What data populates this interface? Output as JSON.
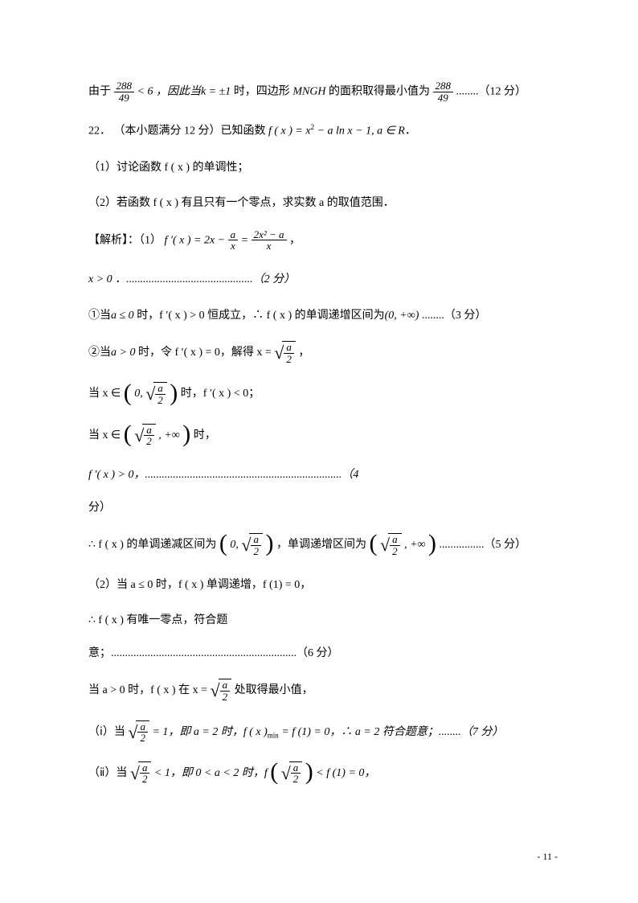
{
  "doc": {
    "background_color": "#ffffff",
    "text_color": "#000000",
    "base_fontsize": 14,
    "math_font": "Times New Roman",
    "body_font": "SimSun"
  },
  "lines": {
    "l1_pre": "由于",
    "l1_frac_num": "288",
    "l1_frac_den": "49",
    "l1_mid1": " < 6 ，因此当",
    "l1_k": "k = ±1",
    "l1_mid2": "时，四边形 ",
    "l1_mngh": "MNGH",
    "l1_mid3": " 的面积取得最小值为",
    "l1_frac2_num": "288",
    "l1_frac2_den": "49",
    "l1_dots": "........（12 分）",
    "l2_qnum": "22．",
    "l2_text": "（本小题满分 12 分）已知函数 ",
    "l2_fx": "f ( x ) = x",
    "l2_sq": "2",
    "l2_rest": " − a ln x − 1, a ∈ R",
    "l2_period": "．",
    "l3": "（1）讨论函数 f ( x ) 的单调性；",
    "l4": "（2）若函数 f ( x ) 有且只有一个零点，求实数 a 的取值范围．",
    "l5_pre": "【解析】：（1）",
    "l5_fpx": "f ′( x ) = 2x − ",
    "l5_frac1_num": "a",
    "l5_frac1_den": "x",
    "l5_eq": " = ",
    "l5_frac2_num": "2x² − a",
    "l5_frac2_den": "x",
    "l5_comma": "，",
    "l6": "x > 0 ．.............................................（2 分）",
    "l7_pre": "①当",
    "l7_a": "a ≤ 0 ",
    "l7_mid": "时，f ′( x ) > 0 恒成立，∴ f ( x ) 的单调递增区间为",
    "l7_int": "(0, +∞)",
    "l7_end": "........（3 分）",
    "l8_pre": "②当",
    "l8_a": "a > 0 ",
    "l8_mid": "时，令 f ′( x ) = 0，解得 x = ",
    "l8_sqrt_num": "a",
    "l8_sqrt_den": "2",
    "l8_comma": "，",
    "l9_pre": "当 x ∈ ",
    "l9_int_zero": "0, ",
    "l9_sqrt_num": "a",
    "l9_sqrt_den": "2",
    "l9_mid": " 时，f ′( x ) < 0；",
    "l10_pre": "当 x ∈ ",
    "l10_sqrt_num": "a",
    "l10_sqrt_den": "2",
    "l10_inf": ", +∞",
    "l10_mid": " 时，",
    "l11": "f ′( x ) > 0，......................................................................（4",
    "l11b": "分）",
    "l12_pre": "∴ f ( x ) 的单调递减区间为",
    "l12_int1_zero": "0, ",
    "l12_sqrt1_num": "a",
    "l12_sqrt1_den": "2",
    "l12_mid": "，单调递增区间为",
    "l12_sqrt2_num": "a",
    "l12_sqrt2_den": "2",
    "l12_inf": ", +∞",
    "l12_end": "................（5 分）",
    "l13": "（2）当 a ≤ 0 时，f ( x ) 单调递增，f (1) = 0，",
    "l14": "∴ f ( x ) 有唯一零点，符合题",
    "l14b": "意；..................................................................（6 分）",
    "l15_pre": "当 a > 0 时，f ( x ) 在 x = ",
    "l15_sqrt_num": "a",
    "l15_sqrt_den": "2",
    "l15_end": " 处取得最小值，",
    "l16_pre": "（ⅰ）当 ",
    "l16_sqrt_num": "a",
    "l16_sqrt_den": "2",
    "l16_mid": " = 1，即 a = 2 时，f ( x )",
    "l16_min": "min",
    "l16_mid2": " = f (1) = 0，∴ a = 2 符合题意；........（7 分）",
    "l17_pre": "（ⅱ）当 ",
    "l17_sqrt_num": "a",
    "l17_sqrt_den": "2",
    "l17_mid": " < 1，即 0 < a < 2 时，f ",
    "l17_sqrt2_num": "a",
    "l17_sqrt2_den": "2",
    "l17_end": " < f (1) = 0，",
    "pagenum": "- 11 -"
  }
}
